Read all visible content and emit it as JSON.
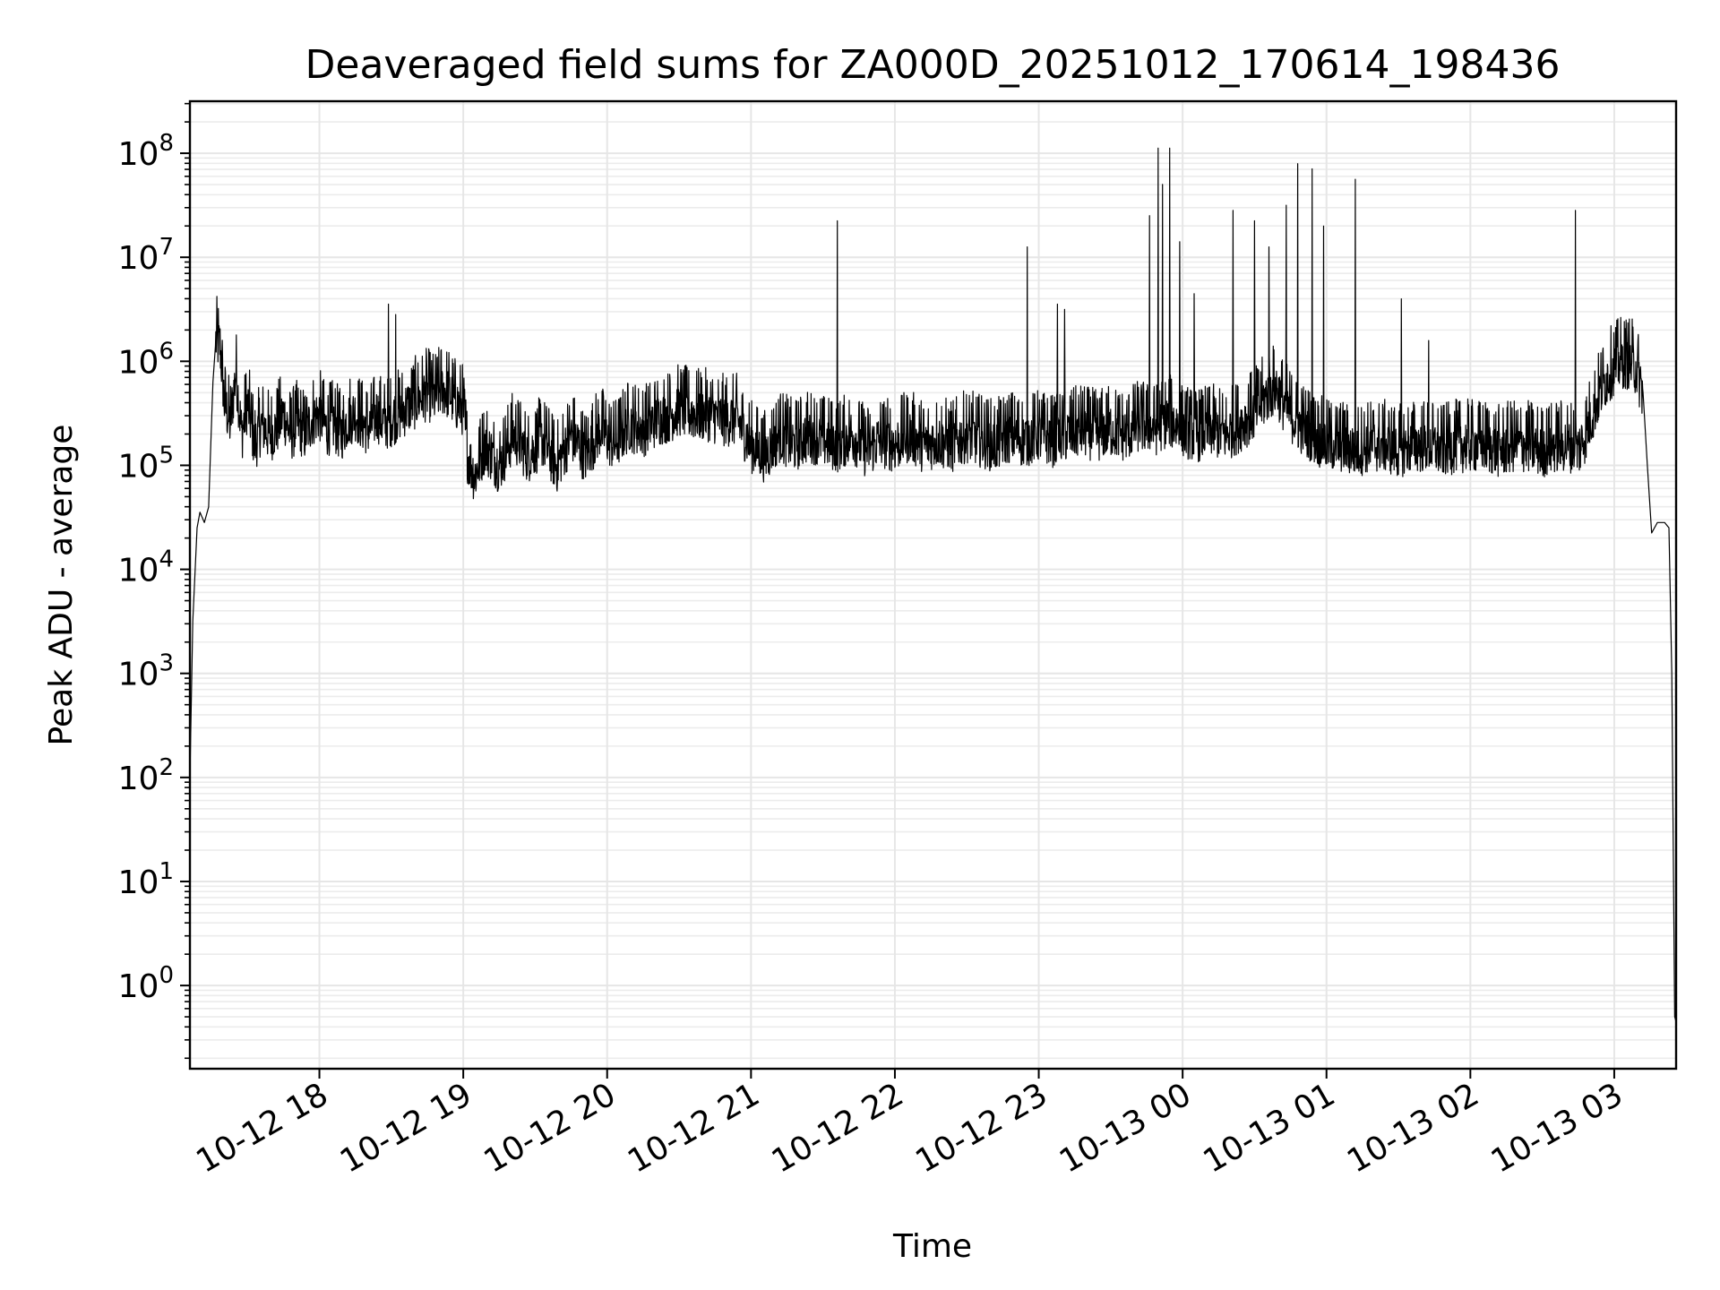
{
  "chart_data": {
    "type": "line",
    "title": "Deaveraged field sums for ZA000D_20251012_170614_198436",
    "xlabel": "Time",
    "ylabel": "Peak ADU - average",
    "yscale": "log",
    "ylim_exponent": [
      -0.8,
      8.5
    ],
    "xlim_hours": [
      17.1,
      27.43
    ],
    "grid": true,
    "line_color": "#000000",
    "x_ticks": [
      {
        "hour": 18,
        "label": "10-12 18"
      },
      {
        "hour": 19,
        "label": "10-12 19"
      },
      {
        "hour": 20,
        "label": "10-12 20"
      },
      {
        "hour": 21,
        "label": "10-12 21"
      },
      {
        "hour": 22,
        "label": "10-12 22"
      },
      {
        "hour": 23,
        "label": "10-12 23"
      },
      {
        "hour": 24,
        "label": "10-13 00"
      },
      {
        "hour": 25,
        "label": "10-13 01"
      },
      {
        "hour": 26,
        "label": "10-13 02"
      },
      {
        "hour": 27,
        "label": "10-13 03"
      }
    ],
    "y_ticks": [
      {
        "exp": 0,
        "base": "10",
        "sup": "0"
      },
      {
        "exp": 1,
        "base": "10",
        "sup": "1"
      },
      {
        "exp": 2,
        "base": "10",
        "sup": "2"
      },
      {
        "exp": 3,
        "base": "10",
        "sup": "3"
      },
      {
        "exp": 4,
        "base": "10",
        "sup": "4"
      },
      {
        "exp": 5,
        "base": "10",
        "sup": "5"
      },
      {
        "exp": 6,
        "base": "10",
        "sup": "6"
      },
      {
        "exp": 7,
        "base": "10",
        "sup": "7"
      },
      {
        "exp": 8,
        "base": "10",
        "sup": "8"
      }
    ],
    "series": [
      {
        "name": "Peak ADU - average",
        "points": [
          [
            17.1,
            2.0
          ],
          [
            17.12,
            3.5
          ],
          [
            17.15,
            4.4
          ],
          [
            17.17,
            4.55
          ],
          [
            17.2,
            4.45
          ],
          [
            17.23,
            4.6
          ],
          [
            17.26,
            5.8
          ],
          [
            17.28,
            6.2
          ],
          [
            17.31,
            6.15
          ],
          [
            17.34,
            5.6
          ],
          [
            17.38,
            5.4
          ],
          [
            17.42,
            5.9
          ],
          [
            17.46,
            5.3
          ],
          [
            17.5,
            5.6
          ],
          [
            17.55,
            5.2
          ],
          [
            17.6,
            5.4
          ],
          [
            17.65,
            5.3
          ],
          [
            17.7,
            5.35
          ],
          [
            17.75,
            5.5
          ],
          [
            17.8,
            5.3
          ],
          [
            17.85,
            5.4
          ],
          [
            17.9,
            5.3
          ],
          [
            17.95,
            5.45
          ],
          [
            18.0,
            5.5
          ],
          [
            18.05,
            5.35
          ],
          [
            18.1,
            5.4
          ],
          [
            18.15,
            5.3
          ],
          [
            18.2,
            5.45
          ],
          [
            18.25,
            5.5
          ],
          [
            18.3,
            5.4
          ],
          [
            18.35,
            5.35
          ],
          [
            18.4,
            5.5
          ],
          [
            18.45,
            5.4
          ],
          [
            18.5,
            5.45
          ],
          [
            18.55,
            5.5
          ],
          [
            18.6,
            5.55
          ],
          [
            18.65,
            5.6
          ],
          [
            18.7,
            5.65
          ],
          [
            18.75,
            5.7
          ],
          [
            18.8,
            5.65
          ],
          [
            18.85,
            5.75
          ],
          [
            18.9,
            5.7
          ],
          [
            18.95,
            5.6
          ],
          [
            19.0,
            5.55
          ],
          [
            19.03,
            5.1
          ],
          [
            19.08,
            4.9
          ],
          [
            19.15,
            5.2
          ],
          [
            19.25,
            5.0
          ],
          [
            19.35,
            5.3
          ],
          [
            19.45,
            5.1
          ],
          [
            19.55,
            5.25
          ],
          [
            19.65,
            5.0
          ],
          [
            19.75,
            5.3
          ],
          [
            19.85,
            5.1
          ],
          [
            19.95,
            5.35
          ],
          [
            20.05,
            5.2
          ],
          [
            20.15,
            5.4
          ],
          [
            20.25,
            5.35
          ],
          [
            20.35,
            5.45
          ],
          [
            20.45,
            5.5
          ],
          [
            20.5,
            5.55
          ],
          [
            20.6,
            5.5
          ],
          [
            20.7,
            5.5
          ],
          [
            20.8,
            5.45
          ],
          [
            20.9,
            5.45
          ],
          [
            21.0,
            5.2
          ],
          [
            21.1,
            5.1
          ],
          [
            21.2,
            5.3
          ],
          [
            21.3,
            5.2
          ],
          [
            21.4,
            5.3
          ],
          [
            21.5,
            5.25
          ],
          [
            21.6,
            5.2
          ],
          [
            21.7,
            5.3
          ],
          [
            21.8,
            5.15
          ],
          [
            21.9,
            5.25
          ],
          [
            22.0,
            5.2
          ],
          [
            22.1,
            5.3
          ],
          [
            22.2,
            5.2
          ],
          [
            22.3,
            5.25
          ],
          [
            22.4,
            5.2
          ],
          [
            22.5,
            5.3
          ],
          [
            22.6,
            5.25
          ],
          [
            22.7,
            5.2
          ],
          [
            22.8,
            5.3
          ],
          [
            22.9,
            5.25
          ],
          [
            23.0,
            5.3
          ],
          [
            23.1,
            5.25
          ],
          [
            23.2,
            5.3
          ],
          [
            23.3,
            5.35
          ],
          [
            23.4,
            5.3
          ],
          [
            23.5,
            5.35
          ],
          [
            23.6,
            5.3
          ],
          [
            23.7,
            5.4
          ],
          [
            23.8,
            5.35
          ],
          [
            23.9,
            5.45
          ],
          [
            24.0,
            5.35
          ],
          [
            24.1,
            5.3
          ],
          [
            24.2,
            5.35
          ],
          [
            24.3,
            5.3
          ],
          [
            24.4,
            5.4
          ],
          [
            24.5,
            5.5
          ],
          [
            24.55,
            5.6
          ],
          [
            24.6,
            5.7
          ],
          [
            24.65,
            5.75
          ],
          [
            24.7,
            5.6
          ],
          [
            24.75,
            5.5
          ],
          [
            24.8,
            5.4
          ],
          [
            24.9,
            5.3
          ],
          [
            25.0,
            5.2
          ],
          [
            25.1,
            5.2
          ],
          [
            25.2,
            5.15
          ],
          [
            25.3,
            5.2
          ],
          [
            25.4,
            5.2
          ],
          [
            25.5,
            5.15
          ],
          [
            25.6,
            5.2
          ],
          [
            25.7,
            5.2
          ],
          [
            25.8,
            5.15
          ],
          [
            25.9,
            5.2
          ],
          [
            26.0,
            5.2
          ],
          [
            26.1,
            5.2
          ],
          [
            26.2,
            5.15
          ],
          [
            26.3,
            5.2
          ],
          [
            26.4,
            5.2
          ],
          [
            26.5,
            5.15
          ],
          [
            26.6,
            5.2
          ],
          [
            26.7,
            5.2
          ],
          [
            26.75,
            5.15
          ],
          [
            26.8,
            5.3
          ],
          [
            26.85,
            5.5
          ],
          [
            26.9,
            5.7
          ],
          [
            26.95,
            5.85
          ],
          [
            27.0,
            5.95
          ],
          [
            27.05,
            6.0
          ],
          [
            27.1,
            6.0
          ],
          [
            27.15,
            5.95
          ],
          [
            27.2,
            5.7
          ],
          [
            27.23,
            5.0
          ],
          [
            27.26,
            4.35
          ],
          [
            27.3,
            4.45
          ],
          [
            27.35,
            4.45
          ],
          [
            27.38,
            4.4
          ],
          [
            27.4,
            3.0
          ],
          [
            27.42,
            -0.3
          ],
          [
            27.43,
            -0.35
          ]
        ],
        "spikes": [
          [
            18.48,
            6.55
          ],
          [
            18.53,
            6.45
          ],
          [
            21.6,
            7.35
          ],
          [
            22.92,
            7.1
          ],
          [
            23.13,
            6.55
          ],
          [
            23.18,
            6.5
          ],
          [
            23.77,
            7.4
          ],
          [
            23.83,
            8.05
          ],
          [
            23.86,
            7.7
          ],
          [
            23.91,
            8.05
          ],
          [
            23.98,
            7.15
          ],
          [
            24.08,
            6.65
          ],
          [
            24.35,
            7.45
          ],
          [
            24.5,
            7.35
          ],
          [
            24.6,
            7.1
          ],
          [
            24.72,
            7.5
          ],
          [
            24.8,
            7.9
          ],
          [
            24.9,
            7.85
          ],
          [
            24.98,
            7.3
          ],
          [
            25.2,
            7.75
          ],
          [
            25.52,
            6.6
          ],
          [
            25.71,
            6.2
          ],
          [
            26.73,
            7.45
          ]
        ],
        "noise_amplitude": 0.55
      }
    ]
  }
}
